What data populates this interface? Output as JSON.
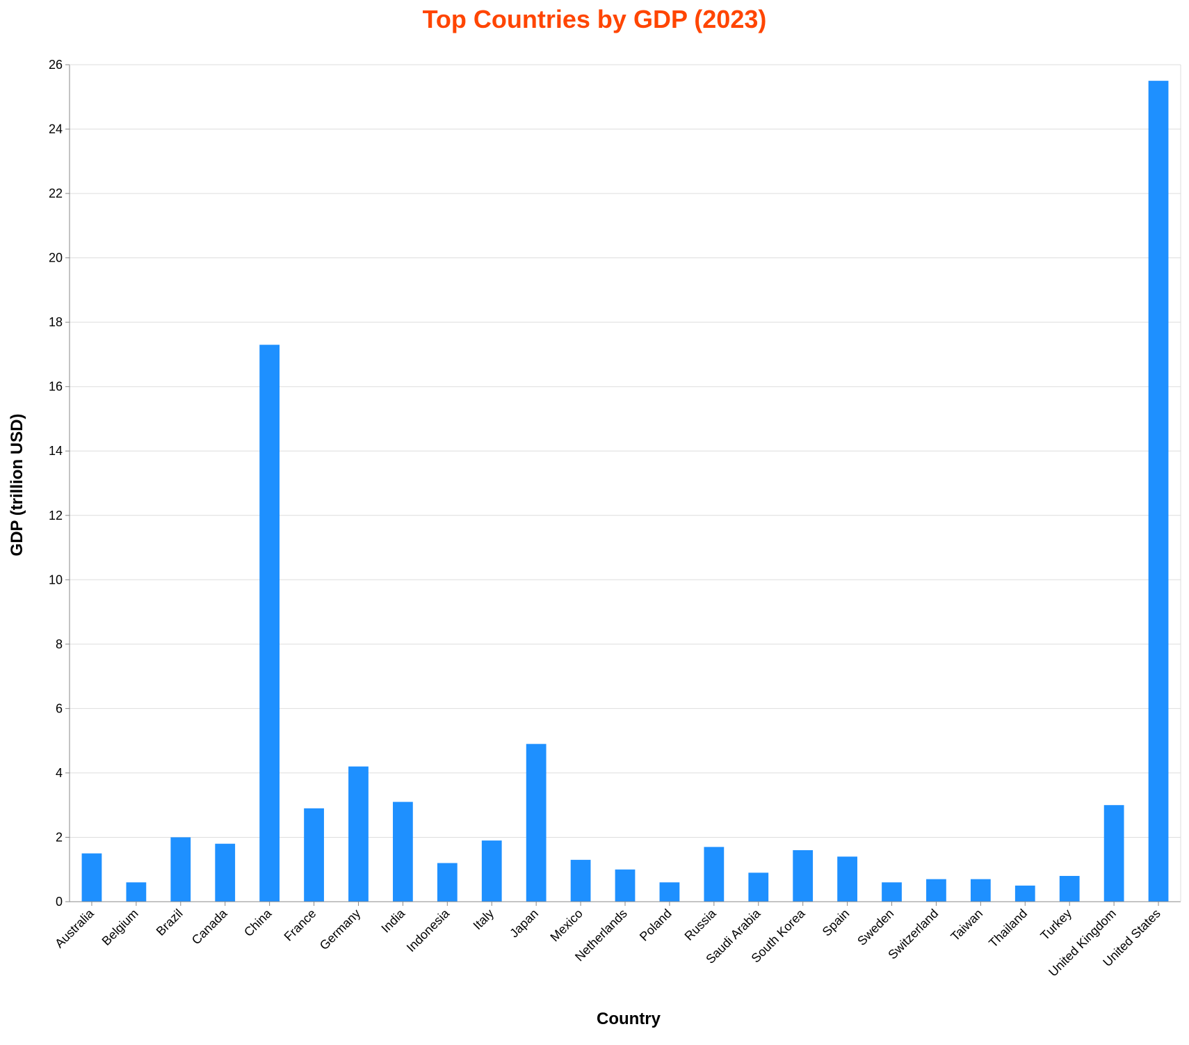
{
  "chart_data": {
    "type": "bar",
    "title": "Top Countries by GDP (2023)",
    "xlabel": "Country",
    "ylabel": "GDP (trillion USD)",
    "ylim": [
      0,
      26
    ],
    "yticks": [
      0,
      2,
      4,
      6,
      8,
      10,
      12,
      14,
      16,
      18,
      20,
      22,
      24,
      26
    ],
    "grid": true,
    "legend": "none",
    "categories": [
      "Australia",
      "Belgium",
      "Brazil",
      "Canada",
      "China",
      "France",
      "Germany",
      "India",
      "Indonesia",
      "Italy",
      "Japan",
      "Mexico",
      "Netherlands",
      "Poland",
      "Russia",
      "Saudi Arabia",
      "South Korea",
      "Spain",
      "Sweden",
      "Switzerland",
      "Taiwan",
      "Thailand",
      "Turkey",
      "United Kingdom",
      "United States"
    ],
    "values": [
      1.5,
      0.6,
      2.0,
      1.8,
      17.3,
      2.9,
      4.2,
      3.1,
      1.2,
      1.9,
      4.9,
      1.3,
      1.0,
      0.6,
      1.7,
      0.9,
      1.6,
      1.4,
      0.6,
      0.7,
      0.7,
      0.5,
      0.8,
      3.0,
      25.5
    ]
  },
  "colors": {
    "bar": "#1e90ff",
    "title": "#ff4500",
    "grid": "#dddddd",
    "axis": "#888888"
  }
}
